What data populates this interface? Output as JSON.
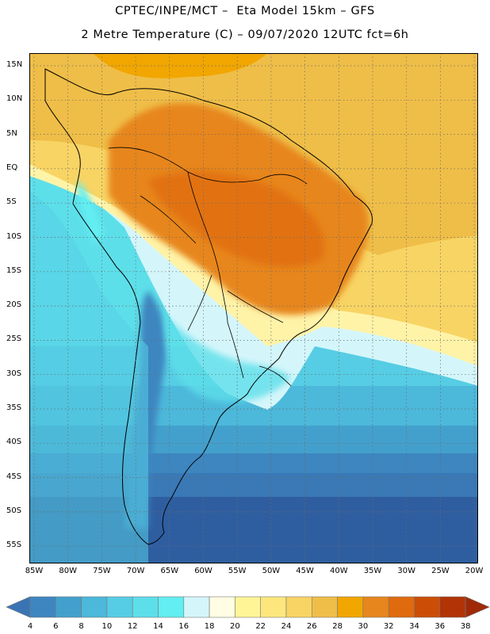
{
  "header": {
    "title_line1": "CPTEC/INPE/MCT –  Eta Model 15km – GFS",
    "title_line2": "2 Metre Temperature (C) – 09/07/2020 12UTC fct=6h"
  },
  "map": {
    "lat_labels": [
      "15N",
      "10N",
      "5N",
      "EQ",
      "5S",
      "10S",
      "15S",
      "20S",
      "25S",
      "30S",
      "35S",
      "40S",
      "45S",
      "50S",
      "55S"
    ],
    "lon_labels": [
      "85W",
      "80W",
      "75W",
      "70W",
      "65W",
      "60W",
      "55W",
      "50W",
      "45W",
      "40W",
      "35W",
      "30W",
      "25W",
      "20W"
    ],
    "gridline_style": "dotted"
  },
  "colorbar": {
    "values": [
      "4",
      "6",
      "8",
      "10",
      "12",
      "14",
      "16",
      "18",
      "20",
      "22",
      "24",
      "26",
      "28",
      "30",
      "32",
      "34",
      "36",
      "38"
    ],
    "colors": [
      "#3b74b4",
      "#3d86c0",
      "#43a0cc",
      "#4cb8da",
      "#56cde4",
      "#5ddfea",
      "#62eef2",
      "#d4f6fb",
      "#fffde3",
      "#fff597",
      "#fde77c",
      "#f8d464",
      "#efbe48",
      "#f1a600",
      "#e7861d",
      "#e06a0e",
      "#cc4e06",
      "#b03406",
      "#a02a08"
    ]
  }
}
